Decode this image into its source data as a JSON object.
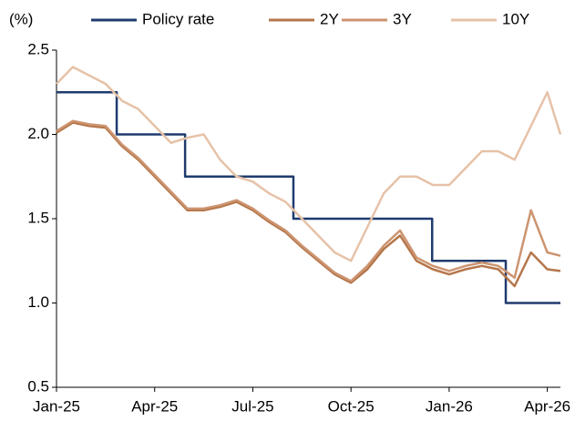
{
  "chart_data": {
    "type": "line",
    "y_label": "(%)",
    "xlim": [
      0,
      15.4
    ],
    "xticks": [
      {
        "value": 0,
        "label": "Jan-25"
      },
      {
        "value": 3,
        "label": "Apr-25"
      },
      {
        "value": 6,
        "label": "Jul-25"
      },
      {
        "value": 9,
        "label": "Oct-25"
      },
      {
        "value": 12,
        "label": "Jan-26"
      },
      {
        "value": 15,
        "label": "Apr-26"
      }
    ],
    "ylim": [
      0.5,
      2.5
    ],
    "yticks": [
      0.5,
      {
        "value": 1,
        "label": "1.0"
      },
      1.5,
      {
        "value": 2,
        "label": "2.0"
      },
      2.5
    ],
    "grid": false,
    "legend": "top",
    "series": [
      {
        "name": "Policy rate",
        "color": "#1f3b6e",
        "x": [
          0,
          1.84,
          1.84,
          3.93,
          3.93,
          7.24,
          7.24,
          11.48,
          11.48,
          13.73,
          13.73,
          15.4
        ],
        "values": [
          2.25,
          2.25,
          2,
          2,
          1.75,
          1.75,
          1.5,
          1.5,
          1.25,
          1.25,
          1,
          1
        ]
      },
      {
        "name": "2Y",
        "color": "#b5764a",
        "x": [
          0,
          0.5,
          1,
          1.5,
          2,
          2.5,
          3,
          3.5,
          4,
          4.5,
          5,
          5.5,
          6,
          6.5,
          7,
          7.5,
          8,
          8.5,
          9,
          9.5,
          10,
          10.5,
          11,
          11.5,
          12,
          12.5,
          13,
          13.5,
          14,
          14.5,
          15,
          15.4
        ],
        "values": [
          2.01,
          2.07,
          2.05,
          2.04,
          1.93,
          1.85,
          1.75,
          1.65,
          1.55,
          1.55,
          1.57,
          1.6,
          1.55,
          1.48,
          1.42,
          1.33,
          1.25,
          1.17,
          1.12,
          1.2,
          1.32,
          1.4,
          1.25,
          1.2,
          1.17,
          1.2,
          1.22,
          1.2,
          1.1,
          1.3,
          1.2,
          1.19
        ]
      },
      {
        "name": "3Y",
        "color": "#cc9470",
        "x": [
          0,
          0.5,
          1,
          1.5,
          2,
          2.5,
          3,
          3.5,
          4,
          4.5,
          5,
          5.5,
          6,
          6.5,
          7,
          7.5,
          8,
          8.5,
          9,
          9.5,
          10,
          10.5,
          11,
          11.5,
          12,
          12.5,
          13,
          13.5,
          14,
          14.5,
          15,
          15.4
        ],
        "values": [
          2.02,
          2.08,
          2.06,
          2.05,
          1.94,
          1.86,
          1.76,
          1.66,
          1.56,
          1.56,
          1.58,
          1.61,
          1.56,
          1.49,
          1.43,
          1.34,
          1.26,
          1.18,
          1.13,
          1.22,
          1.34,
          1.43,
          1.27,
          1.22,
          1.19,
          1.22,
          1.24,
          1.22,
          1.15,
          1.55,
          1.3,
          1.28
        ]
      },
      {
        "name": "10Y",
        "color": "#e6c2a8",
        "x": [
          0,
          0.5,
          1,
          1.5,
          2,
          2.5,
          3,
          3.5,
          4,
          4.5,
          5,
          5.5,
          6,
          6.5,
          7,
          7.5,
          8,
          8.5,
          9,
          9.5,
          10,
          10.5,
          11,
          11.5,
          12,
          12.5,
          13,
          13.5,
          14,
          14.5,
          15,
          15.4
        ],
        "values": [
          2.3,
          2.4,
          2.35,
          2.3,
          2.2,
          2.15,
          2.05,
          1.95,
          1.98,
          2.0,
          1.85,
          1.75,
          1.72,
          1.65,
          1.6,
          1.5,
          1.4,
          1.3,
          1.25,
          1.45,
          1.65,
          1.75,
          1.75,
          1.7,
          1.7,
          1.8,
          1.9,
          1.9,
          1.85,
          2.05,
          2.25,
          2.0
        ]
      }
    ]
  }
}
